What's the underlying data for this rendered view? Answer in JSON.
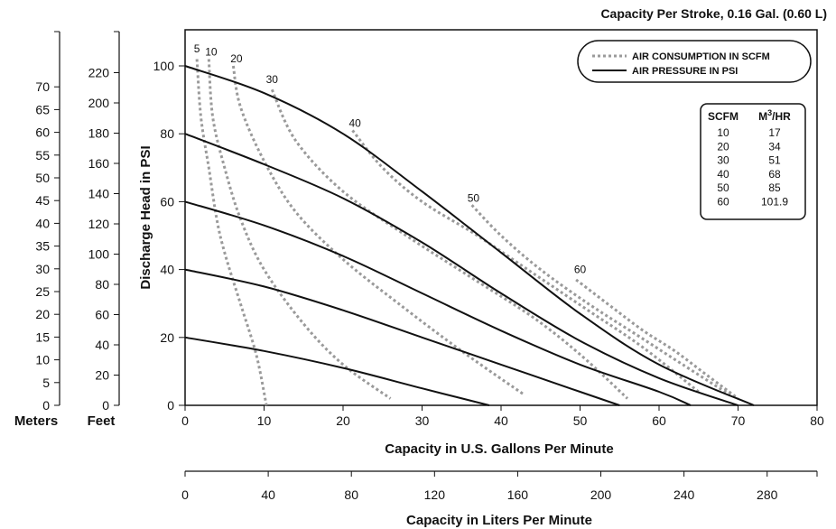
{
  "chart_data": {
    "type": "line",
    "title": "Capacity Per Stroke, 0.16 Gal. (0.60 L)",
    "xlabel": "Capacity in U.S. Gallons Per Minute",
    "ylabel": "Discharge Head in PSI",
    "xlim": [
      0,
      80
    ],
    "ylim": [
      0,
      110
    ],
    "x_ticks": [
      "0",
      "10",
      "20",
      "30",
      "40",
      "50",
      "60",
      "70",
      "80"
    ],
    "y_ticks": [
      "0",
      "20",
      "40",
      "60",
      "80",
      "100"
    ],
    "secondary_x": {
      "label": "Capacity in Liters Per Minute",
      "ticks": [
        "0",
        "40",
        "80",
        "120",
        "160",
        "200",
        "240",
        "280"
      ]
    },
    "meters_axis": {
      "label": "Meters",
      "ticks": [
        "0",
        "5",
        "10",
        "15",
        "20",
        "25",
        "30",
        "35",
        "40",
        "45",
        "50",
        "55",
        "60",
        "65",
        "70"
      ]
    },
    "feet_axis": {
      "label": "Feet",
      "ticks": [
        "0",
        "20",
        "40",
        "60",
        "80",
        "100",
        "120",
        "140",
        "160",
        "180",
        "200",
        "220"
      ]
    },
    "legend": {
      "position": "top-right",
      "entries": [
        {
          "label": "AIR CONSUMPTION IN SCFM",
          "style": "dotted",
          "color": "#9a9a9a"
        },
        {
          "label": "AIR PRESSURE IN PSI",
          "style": "solid",
          "color": "#111111"
        }
      ]
    },
    "conversion_table": {
      "headers": [
        "SCFM",
        "M3/HR"
      ],
      "rows": [
        [
          "10",
          "17"
        ],
        [
          "20",
          "34"
        ],
        [
          "30",
          "51"
        ],
        [
          "40",
          "68"
        ],
        [
          "50",
          "85"
        ],
        [
          "60",
          "101.9"
        ]
      ]
    },
    "pressure_series": [
      {
        "points": [
          [
            0,
            100
          ],
          [
            10,
            92
          ],
          [
            20,
            80
          ],
          [
            30,
            63
          ],
          [
            40,
            45
          ],
          [
            50,
            27
          ],
          [
            60,
            12
          ],
          [
            72,
            0
          ]
        ]
      },
      {
        "points": [
          [
            0,
            80
          ],
          [
            10,
            71
          ],
          [
            20,
            61
          ],
          [
            30,
            48
          ],
          [
            40,
            33
          ],
          [
            50,
            19
          ],
          [
            60,
            8
          ],
          [
            70,
            0
          ]
        ]
      },
      {
        "points": [
          [
            0,
            60
          ],
          [
            10,
            53
          ],
          [
            20,
            44
          ],
          [
            30,
            33
          ],
          [
            40,
            22
          ],
          [
            50,
            12
          ],
          [
            60,
            4
          ],
          [
            64,
            0
          ]
        ]
      },
      {
        "points": [
          [
            0,
            40
          ],
          [
            10,
            35
          ],
          [
            20,
            28
          ],
          [
            30,
            20
          ],
          [
            40,
            12
          ],
          [
            50,
            4
          ],
          [
            55,
            0
          ]
        ]
      },
      {
        "points": [
          [
            0,
            20
          ],
          [
            10,
            16
          ],
          [
            20,
            11
          ],
          [
            30,
            5
          ],
          [
            38.5,
            0
          ]
        ]
      }
    ],
    "air_series": [
      {
        "name": "5",
        "label_at": [
          1.5,
          104
        ],
        "points": [
          [
            1.5,
            102
          ],
          [
            2,
            85
          ],
          [
            3,
            70
          ],
          [
            4,
            55
          ],
          [
            5,
            45
          ],
          [
            7,
            30
          ],
          [
            9,
            15
          ],
          [
            10.3,
            0
          ]
        ]
      },
      {
        "name": "10",
        "label_at": [
          3.3,
          103
        ],
        "points": [
          [
            3,
            102
          ],
          [
            3.5,
            85
          ],
          [
            5,
            70
          ],
          [
            7,
            55
          ],
          [
            10,
            40
          ],
          [
            15,
            24
          ],
          [
            20,
            12
          ],
          [
            26,
            2
          ]
        ]
      },
      {
        "name": "20",
        "label_at": [
          6.5,
          101
        ],
        "points": [
          [
            6.1,
            100
          ],
          [
            7,
            88
          ],
          [
            10,
            72
          ],
          [
            14,
            57
          ],
          [
            20,
            43
          ],
          [
            27,
            30
          ],
          [
            35,
            16
          ],
          [
            43,
            3
          ]
        ]
      },
      {
        "name": "30",
        "label_at": [
          11,
          95
        ],
        "points": [
          [
            11,
            93
          ],
          [
            14,
            78
          ],
          [
            20,
            63
          ],
          [
            28,
            50
          ],
          [
            36,
            38
          ],
          [
            44,
            26
          ],
          [
            50,
            15
          ],
          [
            56,
            2
          ]
        ]
      },
      {
        "name": "40",
        "label_at": [
          21.5,
          82
        ],
        "points": [
          [
            21.2,
            81
          ],
          [
            25,
            70
          ],
          [
            30,
            60
          ],
          [
            37,
            50
          ],
          [
            44,
            39
          ],
          [
            51,
            28
          ],
          [
            58,
            17
          ],
          [
            65,
            4
          ]
        ]
      },
      {
        "name": "50",
        "label_at": [
          36.5,
          60
        ],
        "points": [
          [
            36.3,
            59
          ],
          [
            40,
            50
          ],
          [
            45,
            40
          ],
          [
            51,
            30
          ],
          [
            57,
            21
          ],
          [
            63,
            12
          ],
          [
            69,
            3
          ]
        ]
      },
      {
        "name": "60",
        "label_at": [
          50,
          39
        ],
        "points": [
          [
            49.5,
            37
          ],
          [
            54,
            29
          ],
          [
            58,
            22
          ],
          [
            62,
            16
          ],
          [
            66,
            9
          ],
          [
            70,
            2
          ]
        ]
      }
    ]
  }
}
